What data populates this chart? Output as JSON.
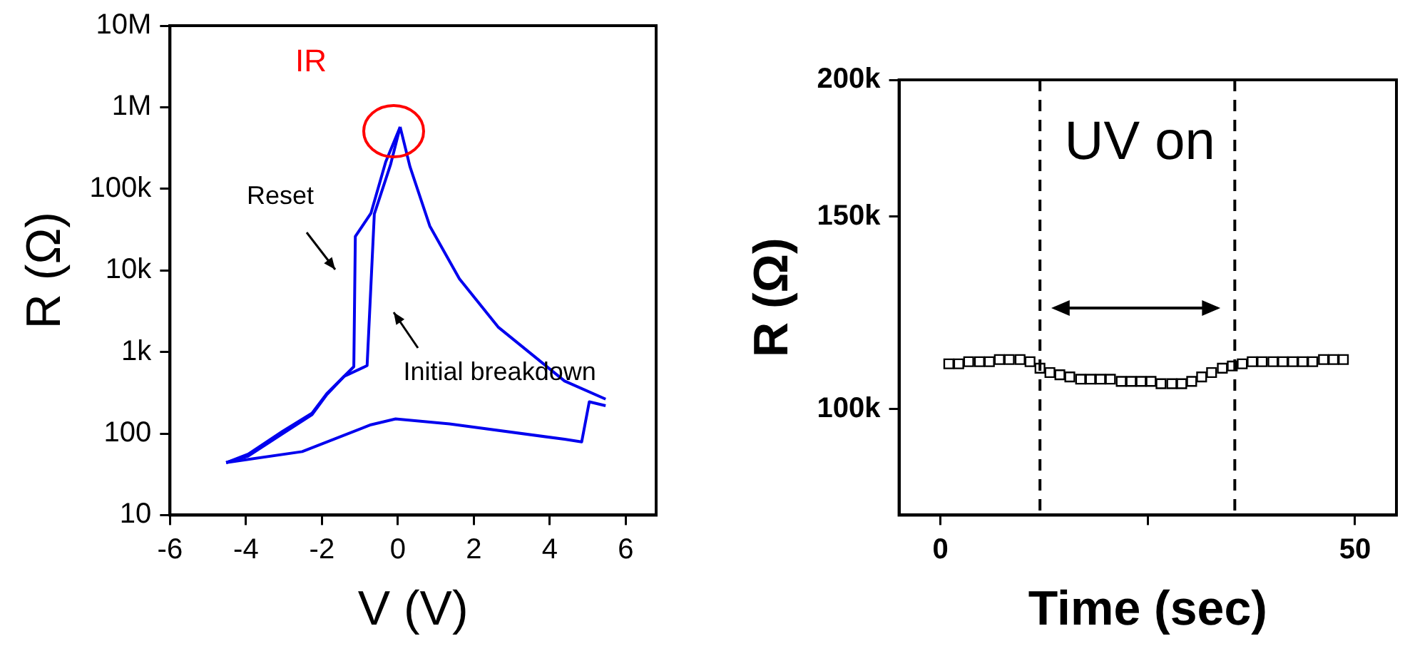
{
  "chart_data": [
    {
      "type": "line",
      "xlabel": "V (V)",
      "ylabel": "R (Ω)",
      "xlim": [
        -6,
        6.8
      ],
      "xticks": [
        -6,
        -4,
        -2,
        0,
        2,
        4,
        6
      ],
      "ylim": [
        10,
        10000000
      ],
      "yticks": [
        10,
        100,
        {
          "value": 1000,
          "label": "1k"
        },
        {
          "value": 10000,
          "label": "10k"
        },
        {
          "value": 100000,
          "label": "100k"
        },
        {
          "value": 1000000,
          "label": "1M"
        },
        {
          "value": 10000000,
          "label": "10M"
        }
      ],
      "log": "y",
      "grid": false,
      "legend": false,
      "marker": "none",
      "line_style": "solid",
      "series": [
        {
          "color": "#0000ee",
          "x": [
            -4.52,
            -3.94,
            -3.03,
            -2.26,
            -1.87,
            -1.42,
            -0.81,
            -0.62,
            -0.19,
            0.06
          ],
          "values": [
            44,
            56,
            107,
            178,
            309,
            500,
            680,
            49000,
            200000,
            575000
          ]
        },
        {
          "color": "#0000ee",
          "x": [
            0.06,
            0.32,
            0.84,
            1.62,
            2.65,
            4.39,
            5.47
          ],
          "values": [
            575000,
            186000,
            35000,
            7900,
            2000,
            440,
            264
          ]
        },
        {
          "color": "#0000ee",
          "x": [
            5.47,
            5.04,
            4.84,
            4.39,
            1.36,
            -0.06,
            -0.71,
            -2.52,
            -4.52
          ],
          "values": [
            219,
            245,
            79,
            85,
            131,
            151,
            128,
            60,
            44
          ]
        },
        {
          "color": "#0000ee",
          "x": [
            0.06,
            -0.32,
            -0.71,
            -1.12,
            -1.16,
            -1.42,
            -1.87,
            -2.26,
            -3.03,
            -3.94,
            -4.52
          ],
          "values": [
            575000,
            214000,
            50000,
            26000,
            660,
            500,
            300,
            170,
            100,
            53,
            44
          ]
        }
      ],
      "annotations": [
        "IR",
        "Reset",
        "Initial breakdown"
      ]
    },
    {
      "type": "scatter",
      "xlabel": "Time (sec)",
      "ylabel": "R (Ω)",
      "xlim": [
        -5,
        55
      ],
      "xticks": [
        0,
        {
          "value": 25,
          "label": null
        },
        50
      ],
      "ylim": [
        80000,
        200000
      ],
      "yticks": [
        {
          "value": 100000,
          "label": "100k"
        },
        {
          "value": 150000,
          "label": "150k"
        },
        {
          "value": 200000,
          "label": "200k"
        }
      ],
      "log": "y",
      "grid": false,
      "legend": false,
      "marker": "square",
      "x": [
        1.0,
        2.2,
        3.4,
        4.7,
        5.9,
        7.1,
        8.3,
        9.6,
        10.8,
        12.0,
        13.2,
        14.4,
        15.6,
        16.9,
        18.1,
        19.3,
        20.5,
        21.8,
        23.0,
        24.2,
        25.4,
        26.6,
        27.9,
        29.1,
        30.3,
        31.5,
        32.7,
        34.0,
        35.2,
        36.4,
        37.6,
        38.8,
        40.1,
        41.3,
        42.5,
        43.7,
        44.9,
        46.2,
        47.4,
        48.6
      ],
      "series": [
        {
          "color": "#000000",
          "values": [
            110000,
            110000,
            110500,
            110500,
            110500,
            111000,
            111000,
            111000,
            110500,
            109000,
            108000,
            107500,
            107000,
            106500,
            106500,
            106500,
            106500,
            106000,
            106000,
            106000,
            106000,
            105500,
            105500,
            105500,
            106000,
            107000,
            108000,
            109000,
            109500,
            110000,
            110500,
            110500,
            110500,
            110500,
            110500,
            110500,
            110500,
            111000,
            111000,
            111000
          ]
        }
      ],
      "ref_lines": [
        {
          "axis": "x",
          "value": 12,
          "color": "#000000",
          "line_style": "dashed"
        },
        {
          "axis": "x",
          "value": 35.5,
          "color": "#000000",
          "line_style": "dashed"
        }
      ],
      "annotations": [
        "UV on"
      ]
    }
  ]
}
